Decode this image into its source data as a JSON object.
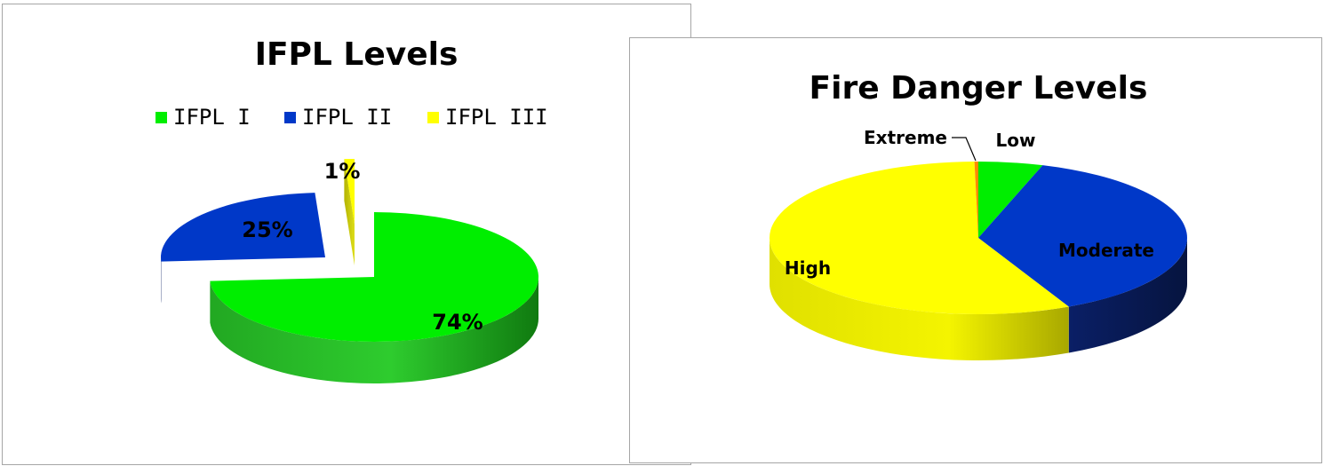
{
  "chart_data": [
    {
      "type": "pie",
      "title": "IFPL Levels",
      "legend_position": "top",
      "categories": [
        "IFPL I",
        "IFPL II",
        "IFPL III"
      ],
      "values": [
        74,
        25,
        1
      ],
      "labels": [
        "74%",
        "25%",
        "1%"
      ],
      "colors": [
        "#00ee00",
        "#0038c8",
        "#ffff00"
      ]
    },
    {
      "type": "pie",
      "title": "Fire Danger Levels",
      "legend_position": "none",
      "categories": [
        "Low",
        "Moderate",
        "High",
        "Extreme"
      ],
      "values": [
        5,
        38,
        57,
        0.3
      ],
      "colors": [
        "#00ee00",
        "#0038c8",
        "#ffff00",
        "#ff8c00"
      ]
    }
  ]
}
